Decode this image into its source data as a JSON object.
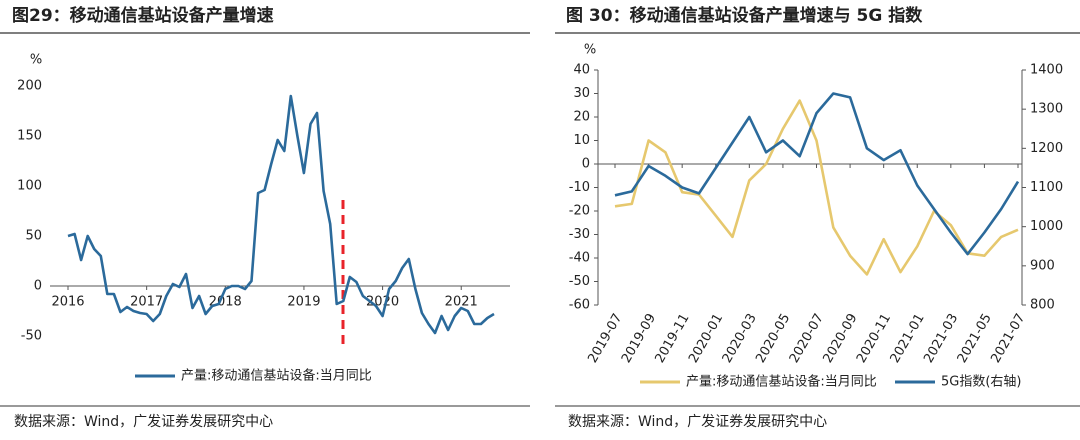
{
  "chart_data": [
    {
      "type": "line",
      "title": "图29：移动通信基站设备产量增速",
      "y_unit": "%",
      "categories": [
        "2016",
        null,
        null,
        null,
        null,
        null,
        null,
        null,
        null,
        null,
        null,
        null,
        "2017",
        null,
        null,
        null,
        null,
        null,
        null,
        null,
        null,
        null,
        null,
        null,
        "2018",
        null,
        null,
        null,
        null,
        null,
        null,
        null,
        null,
        null,
        null,
        null,
        "2019",
        null,
        null,
        null,
        null,
        null,
        null,
        null,
        null,
        null,
        null,
        null,
        "2020",
        null,
        null,
        null,
        null,
        null,
        null,
        null,
        null,
        null,
        null,
        null,
        "2021",
        null,
        null,
        null,
        null,
        null
      ],
      "series": [
        {
          "name": "产量:移动通信基站设备:当月同比",
          "color": "#2b6a9b",
          "values": [
            50,
            52,
            26,
            50,
            37,
            30,
            -8,
            -8,
            -26,
            -21,
            -25,
            -27,
            -28,
            -35,
            -28,
            -10,
            2,
            -1,
            12,
            -22,
            -10,
            -28,
            -20,
            -18,
            -3,
            0,
            0,
            -3,
            5,
            93,
            96,
            122,
            146,
            135,
            190,
            150,
            113,
            162,
            173,
            95,
            62,
            -18,
            -15,
            9,
            4,
            -10,
            -15,
            -20,
            -30,
            -3,
            5,
            18,
            27,
            -3,
            -27,
            -38,
            -47,
            -30,
            -44,
            -30,
            -22,
            -25,
            -38,
            -38,
            -32,
            -28
          ]
        }
      ],
      "ylim": [
        -50,
        200
      ],
      "yticks": [
        -50,
        0,
        50,
        100,
        150,
        200
      ],
      "source": "数据来源：Wind，广发证券发展研究中心"
    },
    {
      "type": "line",
      "title": "图 30：移动通信基站设备产量增速与 5G 指数",
      "y_unit": "%",
      "categories": [
        "2019-07",
        null,
        "2019-09",
        null,
        "2019-11",
        null,
        "2020-01",
        null,
        "2020-03",
        null,
        "2020-05",
        null,
        "2020-07",
        null,
        "2020-09",
        null,
        "2020-11",
        null,
        "2021-01",
        null,
        "2021-03",
        null,
        "2021-05",
        null,
        "2021-07"
      ],
      "series": [
        {
          "name": "产量:移动通信基站设备:当月同比",
          "color": "#e6c86e",
          "values": [
            -18,
            -17,
            10,
            5,
            -12,
            -13,
            -22,
            -31,
            -7,
            0,
            15,
            27,
            10,
            -27,
            -39,
            -47,
            -32,
            -46,
            -35,
            -20,
            -26,
            -38,
            -39,
            -31,
            -28
          ]
        },
        {
          "name": "5G指数(右轴)",
          "color": "#2b6a9b",
          "axis": "y2",
          "values": [
            1080,
            1090,
            1155,
            1130,
            1100,
            1085,
            1150,
            1215,
            1280,
            1190,
            1220,
            1180,
            1290,
            1340,
            1330,
            1200,
            1170,
            1195,
            1105,
            1045,
            985,
            930,
            985,
            1045,
            1115
          ]
        }
      ],
      "ylim": [
        -60,
        40
      ],
      "yticks": [
        -60,
        -50,
        -40,
        -30,
        -20,
        -10,
        0,
        10,
        20,
        30,
        40
      ],
      "y2lim": [
        800,
        1400
      ],
      "y2ticks": [
        800,
        900,
        1000,
        1100,
        1200,
        1300,
        1400
      ],
      "source": "数据来源：Wind，广发证券发展研究中心"
    }
  ]
}
